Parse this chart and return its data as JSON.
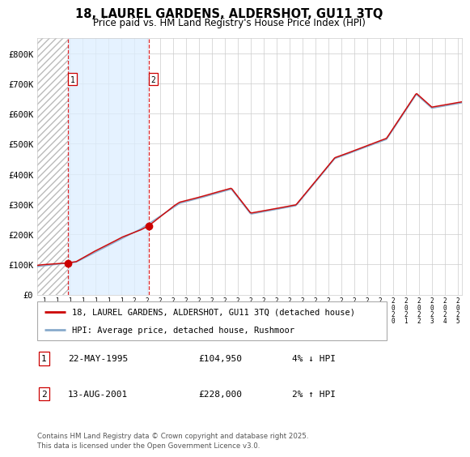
{
  "title": "18, LAUREL GARDENS, ALDERSHOT, GU11 3TQ",
  "subtitle": "Price paid vs. HM Land Registry's House Price Index (HPI)",
  "legend_line1": "18, LAUREL GARDENS, ALDERSHOT, GU11 3TQ (detached house)",
  "legend_line2": "HPI: Average price, detached house, Rushmoor",
  "sale1_label": "1",
  "sale1_date": "22-MAY-1995",
  "sale1_price": "£104,950",
  "sale1_hpi": "4% ↓ HPI",
  "sale2_label": "2",
  "sale2_date": "13-AUG-2001",
  "sale2_price": "£228,000",
  "sale2_hpi": "2% ↑ HPI",
  "copyright": "Contains HM Land Registry data © Crown copyright and database right 2025.\nThis data is licensed under the Open Government Licence v3.0.",
  "sale1_year": 1995.38,
  "sale1_value": 104950,
  "sale2_year": 2001.62,
  "sale2_value": 228000,
  "ylim": [
    0,
    850000
  ],
  "xlim_start": 1993.0,
  "xlim_end": 2025.83,
  "hatch_end": 1995.38,
  "shade_start": 1995.38,
  "shade_end": 2001.62,
  "line_color_red": "#cc0000",
  "line_color_blue": "#88aacc",
  "shade_color": "#ddeeff",
  "background_color": "#ffffff",
  "grid_color": "#cccccc",
  "yticks": [
    0,
    100000,
    200000,
    300000,
    400000,
    500000,
    600000,
    700000,
    800000
  ],
  "ytick_labels": [
    "£0",
    "£100K",
    "£200K",
    "£300K",
    "£400K",
    "£500K",
    "£600K",
    "£700K",
    "£800K"
  ],
  "xtick_years": [
    1993,
    1994,
    1995,
    1996,
    1997,
    1998,
    1999,
    2000,
    2001,
    2002,
    2003,
    2004,
    2005,
    2006,
    2007,
    2008,
    2009,
    2010,
    2011,
    2012,
    2013,
    2014,
    2015,
    2016,
    2017,
    2018,
    2019,
    2020,
    2021,
    2022,
    2023,
    2024,
    2025
  ]
}
